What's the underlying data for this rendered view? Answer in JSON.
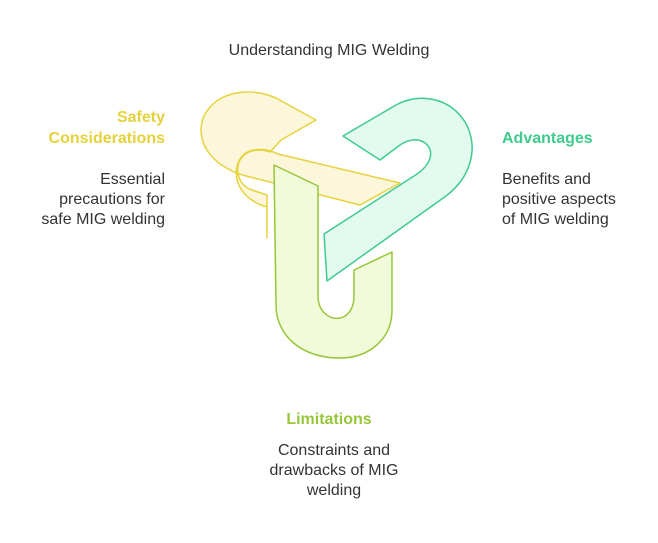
{
  "title": "Understanding MIG Welding",
  "colors": {
    "safety": "#E6D23C",
    "advantages": "#3FCB8E",
    "limitations": "#97C63B"
  },
  "sections": {
    "safety": {
      "label_line1": "Safety",
      "label_line2": "Considerations",
      "desc_line1": "Essential",
      "desc_line2": "precautions for",
      "desc_line3": "safe MIG welding"
    },
    "advantages": {
      "label": "Advantages",
      "desc_line1": "Benefits and",
      "desc_line2": "positive aspects",
      "desc_line3": "of MIG welding"
    },
    "limitations": {
      "label": "Limitations",
      "desc_line1": "Constraints and",
      "desc_line2": "drawbacks of MIG",
      "desc_line3": "welding"
    }
  }
}
